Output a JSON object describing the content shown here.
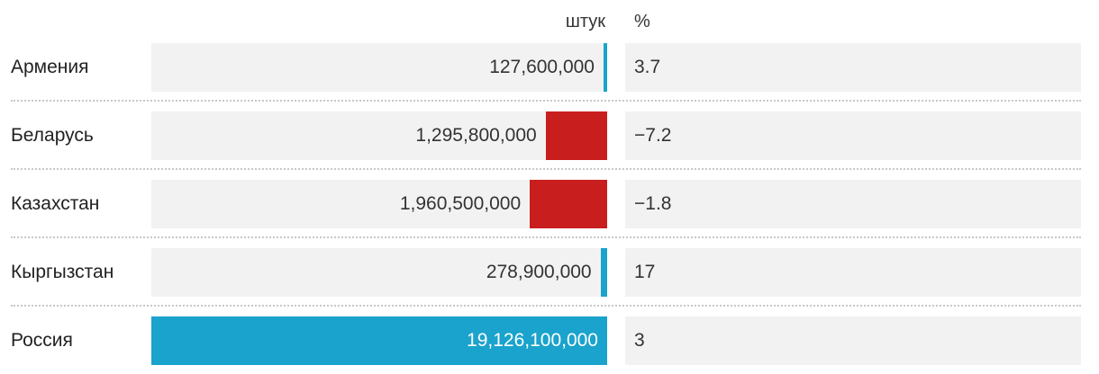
{
  "header": {
    "units_label": "штук",
    "percent_label": "%"
  },
  "colors": {
    "positive": "#1aa3cc",
    "negative": "#c91e1e",
    "row_background": "#f2f2f2"
  },
  "chart_data": {
    "type": "bar",
    "orientation": "horizontal",
    "categories": [
      "Армения",
      "Беларусь",
      "Казахстан",
      "Кыргызстан",
      "Россия"
    ],
    "series": [
      {
        "name": "штук",
        "values": [
          127600000,
          1295800000,
          1960500000,
          278900000,
          19126100000
        ],
        "labels": [
          "127,600,000",
          "1,295,800,000",
          "1,960,500,000",
          "278,900,000",
          "19,126,100,000"
        ]
      },
      {
        "name": "%",
        "values": [
          3.7,
          -7.2,
          -1.8,
          17,
          3
        ],
        "labels": [
          "3.7",
          "−7.2",
          "−1.8",
          "17",
          "3"
        ]
      }
    ],
    "xlim": [
      0,
      19126100000
    ],
    "grid": false,
    "legend": "none"
  }
}
